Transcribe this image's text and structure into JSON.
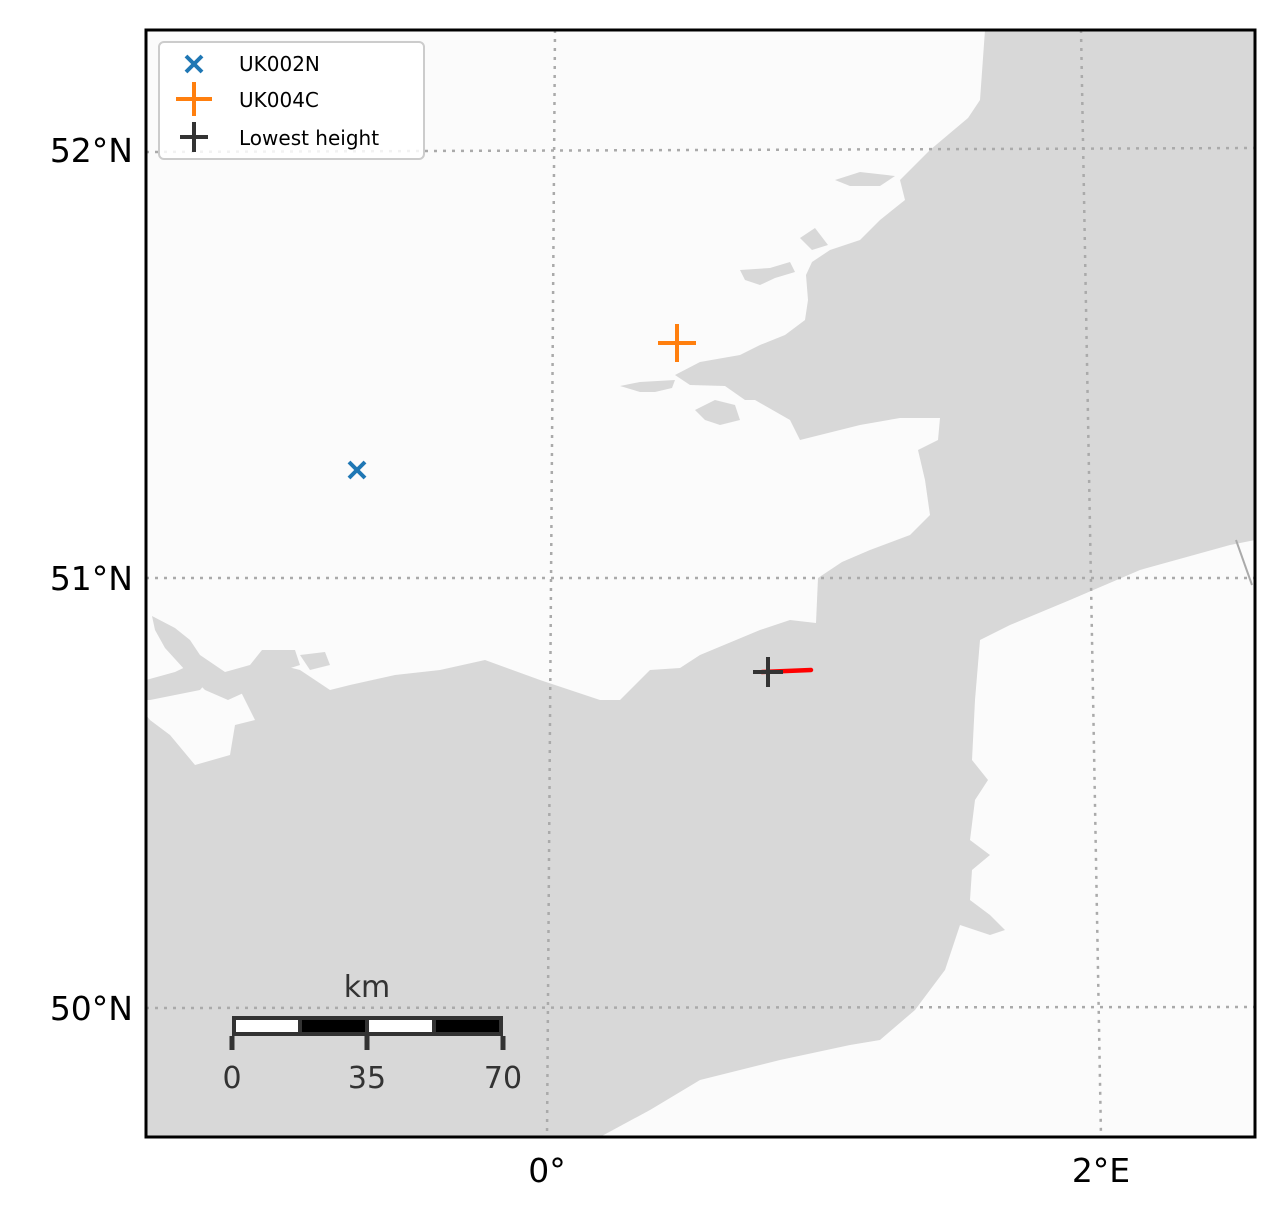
{
  "map": {
    "colors": {
      "sea": "#d8d8d8",
      "land": "#fbfbfb",
      "gridline": "#aaaaaa",
      "track": "#ff0000",
      "frame": "#000000"
    },
    "lat_labels": [
      "52°N",
      "51°N",
      "50°N"
    ],
    "lon_labels": [
      "0°",
      "2°E"
    ],
    "legend": [
      {
        "label": "UK002N",
        "marker": "x",
        "color": "#1f77b4"
      },
      {
        "label": "UK004C",
        "marker": "plus",
        "color": "#ff7f0e"
      },
      {
        "label": "Lowest height",
        "marker": "plus",
        "color": "#333333"
      }
    ],
    "markers": {
      "uk002n": {
        "lon": -0.68,
        "lat": 51.25
      },
      "uk004c": {
        "lon": 0.45,
        "lat": 51.55
      },
      "lowest_height": {
        "lon": 0.78,
        "lat": 50.78
      }
    },
    "scalebar": {
      "unit": "km",
      "labels": [
        "0",
        "35",
        "70"
      ]
    }
  }
}
